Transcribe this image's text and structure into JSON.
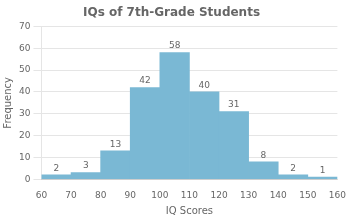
{
  "chart_data": {
    "type": "histogram",
    "title": "IQs of 7th-Grade Students",
    "x_label": "IQ Scores",
    "y_label": "Frequency",
    "bins": [
      60,
      70,
      80,
      90,
      100,
      110,
      120,
      130,
      140,
      150,
      160
    ],
    "values": [
      2,
      3,
      13,
      42,
      58,
      40,
      31,
      8,
      2,
      1
    ],
    "color": "#7ab8d4",
    "xlim": [
      60,
      160
    ],
    "xticks": [
      60,
      70,
      80,
      90,
      100,
      110,
      120,
      130,
      140,
      150,
      160
    ],
    "ylim": [
      0,
      70
    ],
    "yticks": [
      0,
      10,
      20,
      30,
      40,
      50,
      60,
      70
    ],
    "grid": true,
    "data_labels": true
  }
}
